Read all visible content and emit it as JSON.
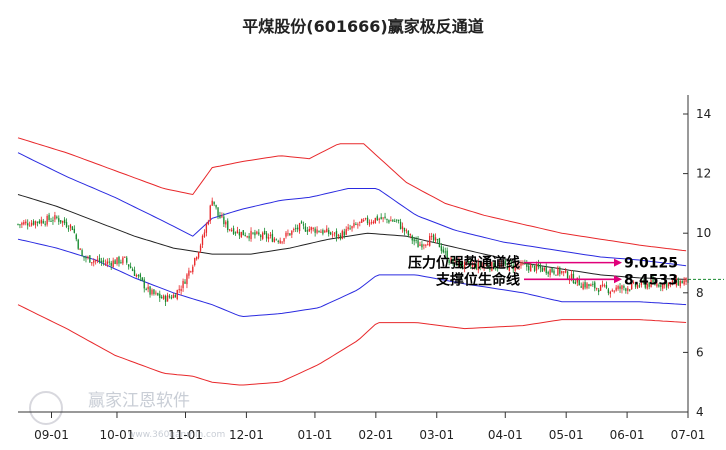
{
  "chart_data": {
    "type": "candlestick",
    "title": "平煤股份(601666)赢家极反通道",
    "x_tick_labels": [
      "09-01",
      "10-01",
      "11-01",
      "12-01",
      "01-01",
      "02-01",
      "03-01",
      "04-01",
      "05-01",
      "06-01",
      "07-01"
    ],
    "y_tick_labels": [
      "4",
      "6",
      "8",
      "10",
      "12",
      "14"
    ],
    "ylim": [
      4,
      15
    ],
    "grid": false,
    "channel_lines": {
      "red_outer": "upper/lower envelope",
      "blue_inner": "inner channel",
      "black_mid": "middle line"
    },
    "annotations": [
      {
        "label": "压力位强势通道线",
        "value": "9.0125"
      },
      {
        "label": "支撑位生命线",
        "value": "8.4533"
      }
    ],
    "price_anchors": [
      [
        0,
        10.3
      ],
      [
        10,
        10.4
      ],
      [
        20,
        10.5
      ],
      [
        28,
        10.2
      ],
      [
        33,
        9.2
      ],
      [
        45,
        9.0
      ],
      [
        55,
        9.1
      ],
      [
        62,
        8.5
      ],
      [
        68,
        8.0
      ],
      [
        75,
        7.8
      ],
      [
        80,
        7.9
      ],
      [
        85,
        8.3
      ],
      [
        90,
        9.0
      ],
      [
        95,
        9.8
      ],
      [
        98,
        10.5
      ],
      [
        100,
        11.2
      ],
      [
        103,
        10.6
      ],
      [
        108,
        10.2
      ],
      [
        115,
        10.0
      ],
      [
        125,
        9.9
      ],
      [
        135,
        9.8
      ],
      [
        145,
        10.2
      ],
      [
        155,
        10.1
      ],
      [
        165,
        9.9
      ],
      [
        175,
        10.3
      ],
      [
        185,
        10.5
      ],
      [
        195,
        10.4
      ],
      [
        200,
        10.0
      ],
      [
        206,
        9.6
      ],
      [
        212,
        9.8
      ],
      [
        216,
        9.7
      ],
      [
        222,
        9.1
      ],
      [
        230,
        8.9
      ],
      [
        240,
        8.9
      ],
      [
        250,
        8.9
      ],
      [
        260,
        8.9
      ],
      [
        270,
        8.8
      ],
      [
        280,
        8.7
      ],
      [
        285,
        8.5
      ],
      [
        290,
        8.3
      ],
      [
        296,
        8.2
      ],
      [
        305,
        8.1
      ],
      [
        315,
        8.2
      ],
      [
        325,
        8.3
      ],
      [
        335,
        8.3
      ],
      [
        345,
        8.4
      ]
    ],
    "upper_red": [
      [
        0,
        13.2
      ],
      [
        25,
        12.7
      ],
      [
        50,
        12.1
      ],
      [
        75,
        11.5
      ],
      [
        90,
        11.3
      ],
      [
        100,
        12.2
      ],
      [
        115,
        12.4
      ],
      [
        135,
        12.6
      ],
      [
        150,
        12.5
      ],
      [
        165,
        13.0
      ],
      [
        178,
        13.0
      ],
      [
        200,
        11.7
      ],
      [
        220,
        11.0
      ],
      [
        240,
        10.6
      ],
      [
        260,
        10.3
      ],
      [
        280,
        10.0
      ],
      [
        300,
        9.8
      ],
      [
        320,
        9.6
      ],
      [
        345,
        9.4
      ]
    ],
    "upper_blue": [
      [
        0,
        12.7
      ],
      [
        25,
        11.9
      ],
      [
        50,
        11.2
      ],
      [
        75,
        10.4
      ],
      [
        90,
        9.9
      ],
      [
        100,
        10.5
      ],
      [
        115,
        10.8
      ],
      [
        135,
        11.1
      ],
      [
        150,
        11.2
      ],
      [
        170,
        11.5
      ],
      [
        185,
        11.5
      ],
      [
        205,
        10.6
      ],
      [
        225,
        10.1
      ],
      [
        250,
        9.7
      ],
      [
        270,
        9.5
      ],
      [
        300,
        9.2
      ],
      [
        320,
        9.1
      ],
      [
        345,
        8.9
      ]
    ],
    "middle": [
      [
        0,
        11.3
      ],
      [
        20,
        10.9
      ],
      [
        40,
        10.4
      ],
      [
        60,
        9.9
      ],
      [
        80,
        9.5
      ],
      [
        100,
        9.3
      ],
      [
        120,
        9.3
      ],
      [
        140,
        9.5
      ],
      [
        160,
        9.8
      ],
      [
        180,
        10.0
      ],
      [
        200,
        9.9
      ],
      [
        220,
        9.6
      ],
      [
        240,
        9.3
      ],
      [
        260,
        9.0
      ],
      [
        280,
        8.8
      ],
      [
        300,
        8.6
      ],
      [
        320,
        8.5
      ],
      [
        345,
        8.45
      ]
    ],
    "lower_blue": [
      [
        0,
        9.8
      ],
      [
        20,
        9.5
      ],
      [
        40,
        9.1
      ],
      [
        60,
        8.5
      ],
      [
        80,
        8.0
      ],
      [
        100,
        7.6
      ],
      [
        115,
        7.2
      ],
      [
        135,
        7.3
      ],
      [
        155,
        7.5
      ],
      [
        175,
        8.1
      ],
      [
        185,
        8.6
      ],
      [
        205,
        8.6
      ],
      [
        230,
        8.3
      ],
      [
        260,
        8.0
      ],
      [
        280,
        7.7
      ],
      [
        300,
        7.7
      ],
      [
        320,
        7.7
      ],
      [
        345,
        7.6
      ]
    ],
    "lower_red": [
      [
        0,
        7.6
      ],
      [
        25,
        6.8
      ],
      [
        50,
        5.9
      ],
      [
        75,
        5.3
      ],
      [
        90,
        5.2
      ],
      [
        100,
        5.0
      ],
      [
        115,
        4.9
      ],
      [
        135,
        5.0
      ],
      [
        155,
        5.6
      ],
      [
        175,
        6.4
      ],
      [
        185,
        7.0
      ],
      [
        205,
        7.0
      ],
      [
        230,
        6.8
      ],
      [
        260,
        6.9
      ],
      [
        280,
        7.1
      ],
      [
        300,
        7.1
      ],
      [
        320,
        7.1
      ],
      [
        345,
        7.0
      ]
    ]
  },
  "watermark": {
    "logo_text": "赢家江恩软件",
    "site_text": "www.360ganmin.com"
  }
}
